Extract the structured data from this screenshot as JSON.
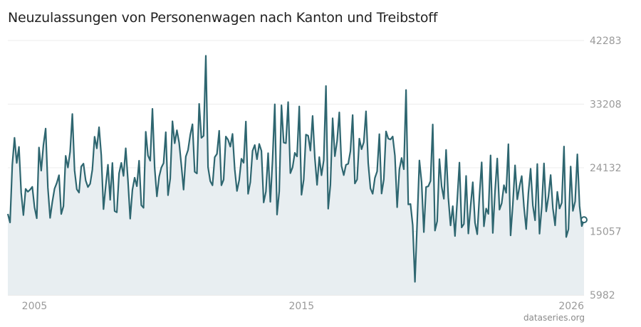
{
  "chart_data": {
    "type": "area",
    "title": "Neuzulassungen von Personenwagen nach Kanton und Treibstoff",
    "credit": "dataseries.org",
    "xlabel": "",
    "ylabel": "",
    "ylim": [
      5982,
      42283
    ],
    "y_ticks": [
      "42283",
      "33208",
      "24132",
      "15057",
      "5982"
    ],
    "x_ticks": [
      {
        "label": "2005",
        "year": 2005
      },
      {
        "label": "2015",
        "year": 2015
      },
      {
        "label": "2026",
        "year": 2026
      }
    ],
    "grid": true,
    "legend": "none",
    "colors": {
      "line": "#2e6670",
      "fill": "#e8eef1",
      "grid": "#ececec",
      "axis": "#d8d8d8"
    },
    "series": [
      {
        "x_start": "2004-01",
        "frequency": "monthly",
        "values": [
          17550,
          16330,
          24540,
          28410,
          24820,
          27110,
          20590,
          17380,
          21120,
          20710,
          21010,
          21410,
          18490,
          16930,
          27030,
          23720,
          27380,
          29720,
          21310,
          16980,
          19260,
          21150,
          21960,
          23070,
          17530,
          18650,
          25830,
          24160,
          26420,
          31800,
          23770,
          21060,
          20590,
          24320,
          24720,
          22320,
          21380,
          21850,
          23870,
          28560,
          26900,
          29920,
          25940,
          18230,
          21550,
          24570,
          19560,
          24820,
          17960,
          17780,
          23340,
          24830,
          22970,
          26910,
          22320,
          16870,
          20980,
          22720,
          21500,
          25140,
          18790,
          18420,
          29270,
          25890,
          25140,
          32540,
          24140,
          20050,
          22850,
          24160,
          24790,
          29210,
          20220,
          22580,
          30770,
          27630,
          29480,
          27730,
          24500,
          21010,
          25730,
          26660,
          28820,
          30340,
          23560,
          23320,
          33250,
          28400,
          28690,
          40110,
          24200,
          22220,
          21630,
          25640,
          26110,
          29410,
          21630,
          22430,
          28580,
          28120,
          27150,
          28960,
          23910,
          20820,
          22380,
          25420,
          24850,
          30730,
          20410,
          22090,
          26550,
          27380,
          25350,
          27530,
          26550,
          19180,
          20730,
          26210,
          19270,
          25290,
          33180,
          17450,
          20770,
          33040,
          27730,
          27640,
          33500,
          23360,
          24200,
          26260,
          25750,
          32880,
          20280,
          22440,
          28860,
          28710,
          26580,
          31530,
          25550,
          21690,
          25650,
          23060,
          25210,
          35800,
          18290,
          21700,
          31190,
          25780,
          27950,
          32030,
          24390,
          23080,
          24550,
          24700,
          26510,
          31650,
          21890,
          22460,
          28290,
          26780,
          27780,
          32190,
          24750,
          21200,
          20420,
          22690,
          23620,
          28930,
          20450,
          22450,
          29320,
          28290,
          28170,
          28590,
          25850,
          18500,
          23900,
          25530,
          23920,
          35230,
          18900,
          18960,
          15930,
          7860,
          16330,
          25170,
          22040,
          14950,
          21390,
          21490,
          22250,
          30310,
          15170,
          16510,
          25360,
          21480,
          19710,
          26680,
          19880,
          15910,
          18660,
          14390,
          19480,
          24870,
          15620,
          16120,
          22970,
          14750,
          18610,
          22070,
          16280,
          14650,
          20190,
          24910,
          15780,
          18320,
          17550,
          25900,
          14830,
          20780,
          25450,
          18160,
          19080,
          21650,
          20560,
          27500,
          14480,
          18930,
          24480,
          19620,
          21470,
          22950,
          18610,
          15380,
          20540,
          23990,
          18760,
          16640,
          24670,
          14720,
          18540,
          24750,
          17900,
          20020,
          23100,
          18380,
          15920,
          20700,
          18320,
          19150,
          27160,
          14250,
          15370,
          24310,
          17980,
          19330,
          26050,
          18700,
          15810,
          16720
        ]
      }
    ]
  }
}
